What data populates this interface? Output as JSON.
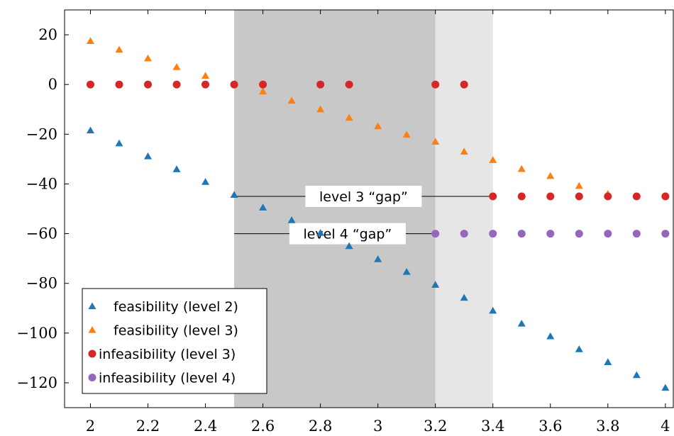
{
  "chart_data": {
    "type": "scatter",
    "xlim": [
      1.91,
      4.03
    ],
    "ylim": [
      -130,
      30
    ],
    "x_ticks": [
      "2",
      "2.2",
      "2.4",
      "2.6",
      "2.8",
      "3",
      "3.2",
      "3.4",
      "3.6",
      "3.8",
      "4"
    ],
    "x_tick_values": [
      2,
      2.2,
      2.4,
      2.6,
      2.8,
      3,
      3.2,
      3.4,
      3.6,
      3.8,
      4
    ],
    "y_ticks": [
      "20",
      "0",
      "−20",
      "−40",
      "−60",
      "−80",
      "−100",
      "−120"
    ],
    "y_tick_values": [
      20,
      0,
      -20,
      -40,
      -60,
      -80,
      -100,
      -120
    ],
    "grid": false,
    "legend_position": "bottom-left",
    "shaded_regions": [
      {
        "x_from": 2.5,
        "x_to": 3.2,
        "color": "#c8c8c8"
      },
      {
        "x_from": 3.2,
        "x_to": 3.4,
        "color": "#e6e6e6"
      }
    ],
    "annotations": [
      {
        "text": "level 3 “gap”",
        "y": -45,
        "x_from": 2.5,
        "x_to": 3.4
      },
      {
        "text": "level 4 “gap”",
        "y": -60,
        "x_from": 2.5,
        "x_to": 3.2
      }
    ],
    "series": [
      {
        "name": "feasibility (level 2)",
        "marker": "triangle",
        "color": "#1f77b4",
        "x": [
          2.0,
          2.1,
          2.2,
          2.3,
          2.4,
          2.5,
          2.6,
          2.7,
          2.8,
          2.9,
          3.0,
          3.1,
          3.2,
          3.3,
          3.4,
          3.5,
          3.6,
          3.7,
          3.8,
          3.9,
          4.0
        ],
        "y": [
          -18.5,
          -23.7,
          -28.9,
          -34.1,
          -39.2,
          -44.4,
          -49.5,
          -54.6,
          -59.7,
          -65.0,
          -70.3,
          -75.4,
          -80.6,
          -85.8,
          -91.0,
          -96.2,
          -101.3,
          -106.5,
          -111.7,
          -116.9,
          -122.0
        ]
      },
      {
        "name": "feasibility (level 3)",
        "marker": "triangle",
        "color": "#ff7f0e",
        "x": [
          2.0,
          2.1,
          2.2,
          2.3,
          2.4,
          2.6,
          2.7,
          2.8,
          2.9,
          3.0,
          3.1,
          3.2,
          3.3,
          3.4,
          3.5,
          3.6,
          3.7,
          3.8
        ],
        "y": [
          17.5,
          14.0,
          10.5,
          7.0,
          3.5,
          -2.8,
          -6.5,
          -10.0,
          -13.4,
          -16.8,
          -20.2,
          -23.0,
          -27.0,
          -30.4,
          -34.0,
          -36.8,
          -40.8,
          -44.0
        ]
      },
      {
        "name": "infeasibility (level 3)",
        "marker": "circle",
        "color": "#d62728",
        "x": [
          2.0,
          2.1,
          2.2,
          2.3,
          2.4,
          2.5,
          2.6,
          2.8,
          2.9,
          3.2,
          3.3,
          3.4,
          3.5,
          3.6,
          3.7,
          3.8,
          3.9,
          4.0
        ],
        "y": [
          0,
          0,
          0,
          0,
          0,
          0,
          0,
          0,
          0,
          0,
          0,
          -45,
          -45,
          -45,
          -45,
          -45,
          -45,
          -45
        ]
      },
      {
        "name": "infeasibility (level 4)",
        "marker": "circle",
        "color": "#9467bd",
        "x": [
          3.2,
          3.3,
          3.4,
          3.5,
          3.6,
          3.7,
          3.8,
          3.9,
          4.0
        ],
        "y": [
          -60,
          -60,
          -60,
          -60,
          -60,
          -60,
          -60,
          -60,
          -60
        ]
      }
    ]
  }
}
